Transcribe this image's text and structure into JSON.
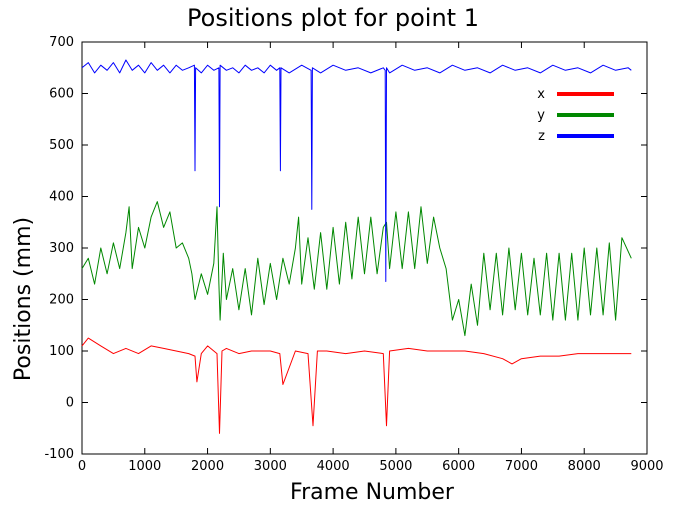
{
  "chart_data": {
    "type": "line",
    "title": "Positions plot for point 1",
    "xlabel": "Frame Number",
    "ylabel": "Positions (mm)",
    "xlim": [
      0,
      9000
    ],
    "ylim": [
      -100,
      700
    ],
    "xticks": [
      0,
      1000,
      2000,
      3000,
      4000,
      5000,
      6000,
      7000,
      8000,
      9000
    ],
    "yticks": [
      -100,
      0,
      100,
      200,
      300,
      400,
      500,
      600,
      700
    ],
    "grid": false,
    "legend_position": "top-right",
    "series": [
      {
        "name": "x",
        "color": "#ff0000",
        "x": [
          0,
          100,
          300,
          500,
          700,
          900,
          1100,
          1300,
          1500,
          1700,
          1800,
          1830,
          1900,
          2000,
          2150,
          2190,
          2230,
          2300,
          2500,
          2700,
          3000,
          3150,
          3200,
          3400,
          3600,
          3680,
          3750,
          3900,
          4200,
          4500,
          4800,
          4850,
          4900,
          5200,
          5500,
          5800,
          6100,
          6400,
          6700,
          6850,
          7000,
          7300,
          7600,
          7900,
          8200,
          8500,
          8750
        ],
        "y": [
          110,
          125,
          110,
          95,
          105,
          95,
          110,
          105,
          100,
          95,
          90,
          40,
          95,
          110,
          95,
          -60,
          100,
          105,
          95,
          100,
          100,
          95,
          35,
          100,
          95,
          -45,
          100,
          100,
          95,
          100,
          95,
          -45,
          100,
          105,
          100,
          100,
          100,
          95,
          85,
          75,
          85,
          90,
          90,
          95,
          95,
          95,
          95
        ]
      },
      {
        "name": "y",
        "color": "#008800",
        "x": [
          0,
          100,
          200,
          300,
          400,
          500,
          600,
          700,
          750,
          800,
          900,
          1000,
          1100,
          1200,
          1300,
          1400,
          1500,
          1600,
          1700,
          1750,
          1800,
          1900,
          2000,
          2100,
          2150,
          2180,
          2200,
          2250,
          2300,
          2400,
          2500,
          2600,
          2700,
          2800,
          2900,
          3000,
          3100,
          3200,
          3300,
          3400,
          3450,
          3500,
          3600,
          3700,
          3800,
          3900,
          4000,
          4100,
          4200,
          4300,
          4400,
          4500,
          4600,
          4700,
          4800,
          4850,
          4900,
          5000,
          5100,
          5200,
          5300,
          5400,
          5500,
          5600,
          5700,
          5800,
          5900,
          6000,
          6100,
          6200,
          6300,
          6400,
          6500,
          6600,
          6700,
          6800,
          6900,
          7000,
          7100,
          7200,
          7300,
          7400,
          7500,
          7600,
          7700,
          7800,
          7900,
          8000,
          8100,
          8200,
          8300,
          8400,
          8500,
          8600,
          8750
        ],
        "y": [
          260,
          280,
          230,
          300,
          250,
          310,
          260,
          330,
          380,
          260,
          340,
          300,
          360,
          390,
          340,
          370,
          300,
          310,
          280,
          250,
          200,
          250,
          210,
          270,
          380,
          230,
          160,
          290,
          200,
          260,
          180,
          260,
          170,
          280,
          190,
          270,
          200,
          280,
          230,
          300,
          360,
          230,
          320,
          220,
          330,
          220,
          340,
          230,
          350,
          240,
          360,
          250,
          360,
          250,
          340,
          350,
          260,
          370,
          260,
          370,
          260,
          380,
          270,
          360,
          300,
          260,
          160,
          200,
          130,
          230,
          150,
          290,
          180,
          290,
          170,
          300,
          180,
          290,
          170,
          280,
          170,
          290,
          160,
          290,
          160,
          290,
          160,
          300,
          170,
          300,
          170,
          310,
          160,
          320,
          280
        ]
      },
      {
        "name": "z",
        "color": "#0000ff",
        "x": [
          0,
          100,
          200,
          300,
          400,
          500,
          600,
          700,
          800,
          900,
          1000,
          1100,
          1200,
          1300,
          1400,
          1500,
          1600,
          1700,
          1790,
          1800,
          1810,
          1900,
          2000,
          2100,
          2180,
          2190,
          2200,
          2300,
          2400,
          2500,
          2600,
          2700,
          2800,
          2900,
          3000,
          3100,
          3150,
          3160,
          3170,
          3300,
          3500,
          3650,
          3660,
          3670,
          3800,
          4000,
          4200,
          4400,
          4600,
          4800,
          4830,
          4840,
          4850,
          4900,
          5100,
          5300,
          5500,
          5700,
          5900,
          6100,
          6300,
          6500,
          6700,
          6900,
          7100,
          7300,
          7500,
          7700,
          7900,
          8100,
          8300,
          8500,
          8700,
          8750
        ],
        "y": [
          650,
          660,
          640,
          655,
          645,
          660,
          640,
          665,
          645,
          655,
          640,
          660,
          645,
          655,
          640,
          655,
          645,
          650,
          655,
          450,
          650,
          640,
          655,
          645,
          650,
          380,
          655,
          645,
          650,
          640,
          655,
          645,
          650,
          640,
          655,
          645,
          650,
          450,
          650,
          640,
          655,
          645,
          375,
          650,
          640,
          655,
          645,
          650,
          640,
          650,
          645,
          235,
          650,
          640,
          655,
          645,
          650,
          640,
          655,
          645,
          650,
          640,
          655,
          645,
          650,
          640,
          655,
          645,
          650,
          640,
          655,
          645,
          650,
          645
        ]
      }
    ]
  }
}
